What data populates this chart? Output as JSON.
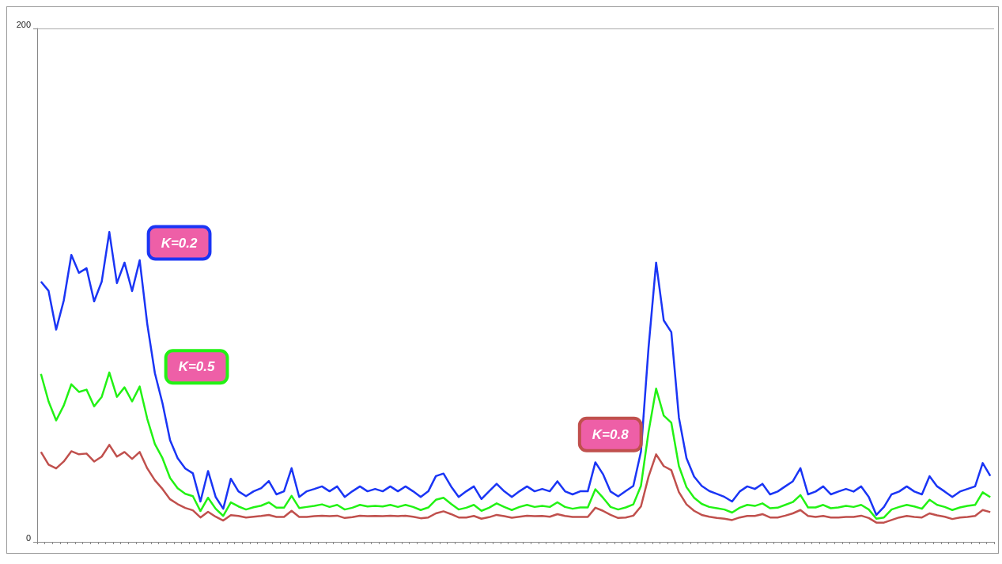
{
  "chart_data": {
    "type": "line",
    "categories": [
      null,
      null,
      null,
      null,
      null,
      null,
      null,
      null,
      null,
      null,
      null,
      null,
      null,
      null,
      null,
      null,
      null,
      null,
      null,
      null,
      null,
      null,
      null,
      null,
      null,
      null,
      null,
      null,
      null,
      null,
      null,
      null,
      null,
      null,
      null,
      null,
      null,
      null,
      null,
      null,
      null,
      null,
      null,
      null,
      null,
      null,
      null,
      null,
      null,
      null,
      null,
      null,
      null,
      null,
      null,
      null,
      null,
      null,
      null,
      null,
      null,
      null,
      null,
      null,
      null,
      null,
      null,
      null,
      null,
      null,
      null,
      null,
      null,
      null,
      null,
      null,
      null,
      null,
      null,
      null,
      null,
      null,
      null,
      null,
      null,
      null,
      null,
      null,
      null,
      null,
      null,
      null,
      null,
      null,
      null,
      null,
      null,
      null,
      null,
      null,
      null,
      null,
      null,
      null,
      null,
      null,
      null,
      null,
      null,
      null,
      null,
      null,
      null,
      null,
      null,
      null,
      null,
      null,
      null,
      null,
      null,
      null,
      null,
      null,
      null,
      null
    ],
    "series": [
      {
        "name": "K=0.2",
        "color": "#1a35f5",
        "values": [
          101.4,
          97.8,
          82.7,
          94,
          111.8,
          104.8,
          106.6,
          93.7,
          101.4,
          120.7,
          100.8,
          108.8,
          97.7,
          109.7,
          84.8,
          65.7,
          54,
          39.6,
          32.6,
          28.6,
          26.7,
          15.7,
          27.6,
          17.5,
          12.9,
          24.6,
          19.7,
          17.8,
          19.7,
          20.9,
          23.7,
          18.5,
          19.7,
          28.7,
          17.5,
          19.7,
          20.6,
          21.6,
          19.7,
          21.6,
          17.5,
          19.7,
          21.6,
          19.7,
          20.6,
          19.7,
          21.6,
          19.7,
          21.6,
          19.7,
          17.5,
          19.7,
          25.6,
          26.6,
          21.6,
          17.5,
          19.7,
          21.6,
          16.7,
          19.7,
          22.6,
          19.7,
          17.5,
          19.7,
          21.6,
          19.7,
          20.6,
          19.7,
          23.6,
          19.7,
          18.5,
          19.7,
          19.7,
          31,
          26.4,
          19.6,
          17.7,
          19.8,
          21.8,
          35.1,
          75.6,
          108.8,
          86.3,
          81.7,
          48.4,
          32.6,
          25.4,
          21.8,
          19.8,
          18.7,
          17.5,
          15.7,
          19.6,
          21.6,
          20.6,
          22.6,
          18.5,
          19.6,
          21.6,
          23.6,
          28.7,
          18.5,
          19.6,
          21.6,
          18.5,
          19.6,
          20.6,
          19.6,
          21.6,
          17.5,
          10.5,
          13.6,
          18.5,
          19.6,
          21.6,
          19.6,
          18.5,
          25.6,
          21.6,
          19.6,
          17.5,
          19.6,
          20.6,
          21.6,
          30.7,
          25.7
        ]
      },
      {
        "name": "K=0.5",
        "color": "#22f214",
        "values": [
          65.4,
          54.7,
          47.3,
          53.1,
          61.4,
          58.4,
          59.3,
          52.8,
          56.5,
          66,
          56.5,
          60.2,
          54.7,
          60.5,
          47.9,
          38.1,
          32.6,
          24.9,
          20.9,
          18.7,
          17.8,
          12,
          17.2,
          12.9,
          10.1,
          15.4,
          13.8,
          12.6,
          13.5,
          14.1,
          15.4,
          13.3,
          13.3,
          17.9,
          13.2,
          13.6,
          14,
          14.6,
          13.6,
          14.4,
          12.6,
          13.3,
          14.4,
          13.8,
          14,
          13.8,
          14.4,
          13.6,
          14.4,
          13.6,
          12.4,
          13.4,
          16.4,
          17.2,
          14.8,
          12.6,
          13.3,
          14.4,
          12.1,
          13.3,
          15,
          13.6,
          12.4,
          13.6,
          14.4,
          13.6,
          14,
          13.6,
          15.4,
          13.6,
          12.9,
          13.4,
          13.4,
          20.5,
          17.2,
          13.6,
          12.6,
          13.4,
          14.6,
          21.8,
          42.8,
          59.7,
          49.2,
          46.4,
          29.5,
          21.3,
          17.2,
          14.8,
          13.6,
          13.1,
          12.6,
          11.4,
          13.3,
          14.4,
          14,
          15,
          13.1,
          13.3,
          14.4,
          15.5,
          18.2,
          13.4,
          13.4,
          14.4,
          13.1,
          13.4,
          14,
          13.6,
          14.4,
          12.6,
          9,
          9.5,
          12.6,
          13.6,
          14.4,
          13.8,
          12.9,
          16.4,
          14.4,
          13.6,
          12.4,
          13.4,
          14,
          14.4,
          19.3,
          17.4
        ]
      },
      {
        "name": "K=0.8",
        "color": "#c0504d",
        "values": [
          35,
          30.1,
          28.6,
          31.3,
          35.3,
          34.1,
          34.4,
          31.3,
          33.2,
          37.8,
          33.2,
          35,
          32.3,
          35,
          28.6,
          24,
          20.6,
          16.6,
          14.7,
          13.2,
          12.3,
          9.5,
          11.7,
          9.8,
          8.3,
          10.4,
          10.1,
          9.5,
          9.8,
          10.1,
          10.5,
          9.7,
          9.7,
          12.1,
          9.7,
          9.7,
          10,
          10.2,
          10,
          10.2,
          9.3,
          9.6,
          10.2,
          10,
          10.1,
          10,
          10.2,
          10,
          10.2,
          9.8,
          9.2,
          9.5,
          11.1,
          11.9,
          10.8,
          9.5,
          9.5,
          10.1,
          9,
          9.6,
          10.5,
          10,
          9.4,
          9.8,
          10.2,
          10,
          10.1,
          9.8,
          10.8,
          10.1,
          9.7,
          9.7,
          9.7,
          13.3,
          12.1,
          10.5,
          9.3,
          9.5,
          10.2,
          13.8,
          25.4,
          34.1,
          29.5,
          27.9,
          19.4,
          14.6,
          12.1,
          10.5,
          9.8,
          9.3,
          9,
          8.5,
          9.5,
          10.1,
          10.1,
          10.8,
          9.5,
          9.5,
          10.2,
          11.1,
          12.4,
          10.1,
          9.7,
          10.1,
          9.5,
          9.5,
          9.7,
          9.7,
          10.2,
          9.3,
          7.5,
          7.5,
          8.5,
          9.5,
          10.1,
          9.7,
          9.5,
          11.1,
          10.3,
          9.8,
          8.9,
          9.5,
          9.7,
          10.1,
          12.4,
          11.6
        ]
      }
    ],
    "ylim": [
      0,
      200
    ],
    "yticks": [
      0,
      200
    ],
    "grid": "y",
    "tick_labels": "y",
    "legend": false,
    "marker": "none",
    "line_style": "solid"
  }
}
